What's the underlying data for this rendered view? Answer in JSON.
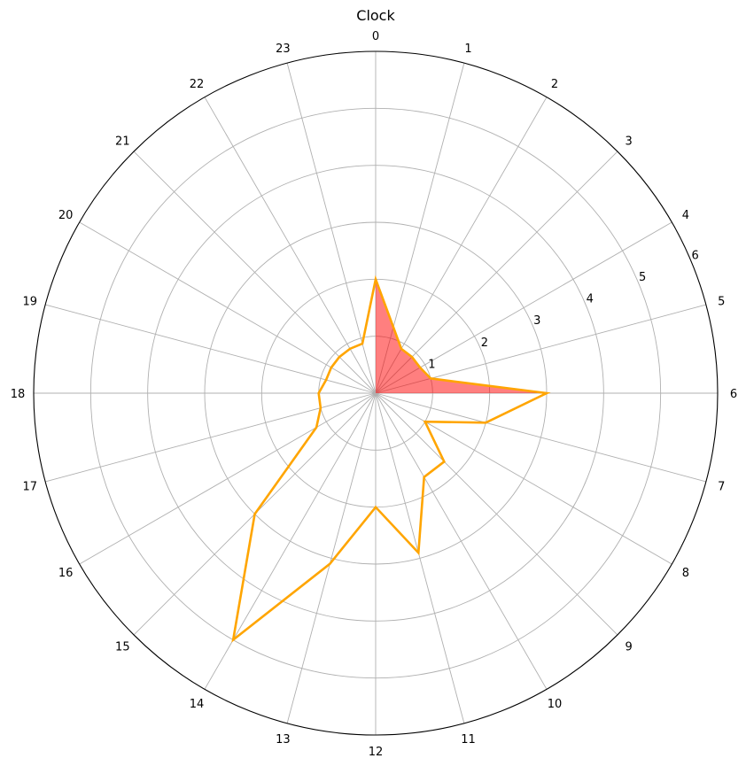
{
  "chart_data": {
    "type": "radar",
    "title": "Clock",
    "theta_ticks": [
      "0",
      "1",
      "2",
      "3",
      "4",
      "5",
      "6",
      "7",
      "8",
      "9",
      "10",
      "11",
      "12",
      "13",
      "14",
      "15",
      "16",
      "17",
      "18",
      "19",
      "20",
      "21",
      "22",
      "23"
    ],
    "theta_direction": "clockwise",
    "theta_zero": "top",
    "r_ticks": [
      "1",
      "2",
      "3",
      "4",
      "5",
      "6"
    ],
    "rlim": [
      0,
      6
    ],
    "grid": true,
    "series": [
      {
        "values": [
          2.0,
          1.2,
          0.9,
          0.9,
          0.9,
          1.0,
          3.0,
          2.0,
          1.0,
          1.7,
          1.7,
          2.9,
          2.0,
          3.1,
          5.0,
          3.0,
          1.2,
          1.0,
          1.0,
          0.9,
          0.9,
          0.9,
          0.9,
          0.9
        ],
        "line_color": "#ffa500",
        "fill_color": "#ff0000",
        "fill_opacity": 0.5,
        "fill_range": [
          0,
          6
        ]
      }
    ]
  }
}
